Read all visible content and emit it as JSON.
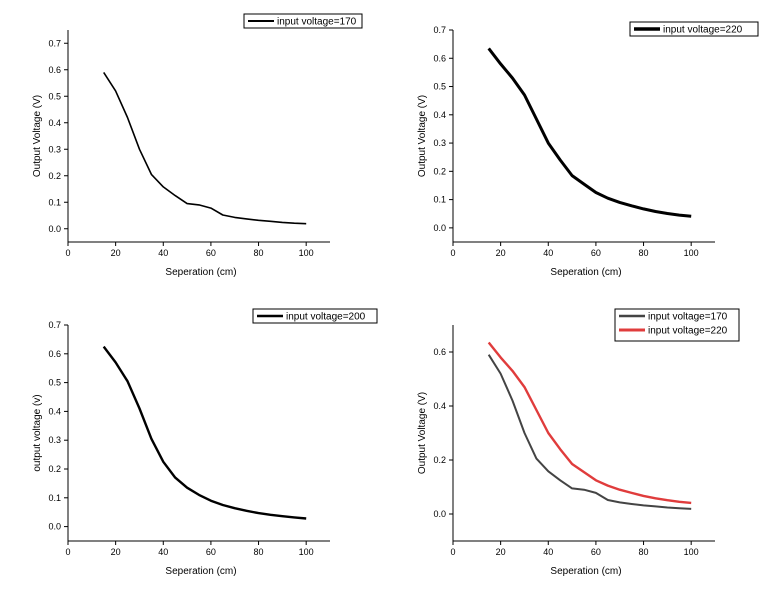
{
  "chart_data": [
    {
      "type": "line",
      "title": "",
      "xlabel": "Seperation (cm)",
      "ylabel": "Output Voltage (V)",
      "xlim": [
        0,
        110
      ],
      "ylim": [
        -0.05,
        0.75
      ],
      "xticks": [
        "0",
        "20",
        "40",
        "60",
        "80",
        "100"
      ],
      "yticks": [
        "0.0",
        "0.1",
        "0.2",
        "0.3",
        "0.4",
        "0.5",
        "0.6",
        "0.7"
      ],
      "legend_position": "top-right",
      "series": [
        {
          "name": "input voltage=170",
          "color": "#000000",
          "x": [
            15,
            20,
            25,
            30,
            35,
            40,
            45,
            50,
            55,
            60,
            65,
            70,
            75,
            80,
            85,
            90,
            95,
            100
          ],
          "y": [
            0.59,
            0.52,
            0.42,
            0.3,
            0.205,
            0.158,
            0.125,
            0.095,
            0.09,
            0.078,
            0.052,
            0.043,
            0.037,
            0.032,
            0.028,
            0.024,
            0.021,
            0.019
          ]
        }
      ]
    },
    {
      "type": "line",
      "title": "",
      "xlabel": "Seperation (cm)",
      "ylabel": "Output Voltage (V)",
      "xlim": [
        0,
        110
      ],
      "ylim": [
        -0.05,
        0.7
      ],
      "xticks": [
        "0",
        "20",
        "40",
        "60",
        "80",
        "100"
      ],
      "yticks": [
        "0.0",
        "0.1",
        "0.2",
        "0.3",
        "0.4",
        "0.5",
        "0.6",
        "0.7"
      ],
      "legend_position": "top-right",
      "series": [
        {
          "name": "input voltage=220",
          "color": "#000000",
          "x": [
            15,
            20,
            25,
            30,
            35,
            40,
            45,
            50,
            55,
            60,
            65,
            70,
            75,
            80,
            85,
            90,
            95,
            100
          ],
          "y": [
            0.635,
            0.58,
            0.53,
            0.47,
            0.385,
            0.3,
            0.24,
            0.185,
            0.155,
            0.125,
            0.105,
            0.09,
            0.078,
            0.067,
            0.058,
            0.051,
            0.045,
            0.041
          ]
        }
      ]
    },
    {
      "type": "line",
      "title": "",
      "xlabel": "Seperation (cm)",
      "ylabel": "output voltage (v)",
      "xlim": [
        0,
        110
      ],
      "ylim": [
        -0.05,
        0.7
      ],
      "xticks": [
        "0",
        "20",
        "40",
        "60",
        "80",
        "100"
      ],
      "yticks": [
        "0.0",
        "0.1",
        "0.2",
        "0.3",
        "0.4",
        "0.5",
        "0.6",
        "0.7"
      ],
      "legend_position": "top-right",
      "series": [
        {
          "name": "input voltage=200",
          "color": "#000000",
          "x": [
            15,
            20,
            25,
            30,
            35,
            40,
            45,
            50,
            55,
            60,
            65,
            70,
            75,
            80,
            85,
            90,
            95,
            100
          ],
          "y": [
            0.625,
            0.57,
            0.505,
            0.41,
            0.305,
            0.225,
            0.17,
            0.135,
            0.11,
            0.09,
            0.075,
            0.064,
            0.055,
            0.047,
            0.041,
            0.036,
            0.032,
            0.028
          ]
        }
      ]
    },
    {
      "type": "line",
      "title": "",
      "xlabel": "Seperation (cm)",
      "ylabel": "Output Voltage (V)",
      "xlim": [
        0,
        110
      ],
      "ylim": [
        -0.1,
        0.7
      ],
      "xticks": [
        "0",
        "20",
        "40",
        "60",
        "80",
        "100"
      ],
      "yticks": [
        "0.0",
        "0.2",
        "0.4",
        "0.6"
      ],
      "legend_position": "top-right",
      "series": [
        {
          "name": "input voltage=170",
          "color": "#444444",
          "x": [
            15,
            20,
            25,
            30,
            35,
            40,
            45,
            50,
            55,
            60,
            65,
            70,
            75,
            80,
            85,
            90,
            95,
            100
          ],
          "y": [
            0.59,
            0.52,
            0.42,
            0.3,
            0.205,
            0.158,
            0.125,
            0.095,
            0.09,
            0.078,
            0.052,
            0.043,
            0.037,
            0.032,
            0.028,
            0.024,
            0.021,
            0.019
          ]
        },
        {
          "name": "input voltage=220",
          "color": "#e03c3c",
          "x": [
            15,
            20,
            25,
            30,
            35,
            40,
            45,
            50,
            55,
            60,
            65,
            70,
            75,
            80,
            85,
            90,
            95,
            100
          ],
          "y": [
            0.635,
            0.58,
            0.53,
            0.47,
            0.385,
            0.3,
            0.24,
            0.185,
            0.155,
            0.125,
            0.105,
            0.09,
            0.078,
            0.067,
            0.058,
            0.051,
            0.045,
            0.041
          ]
        }
      ]
    }
  ]
}
